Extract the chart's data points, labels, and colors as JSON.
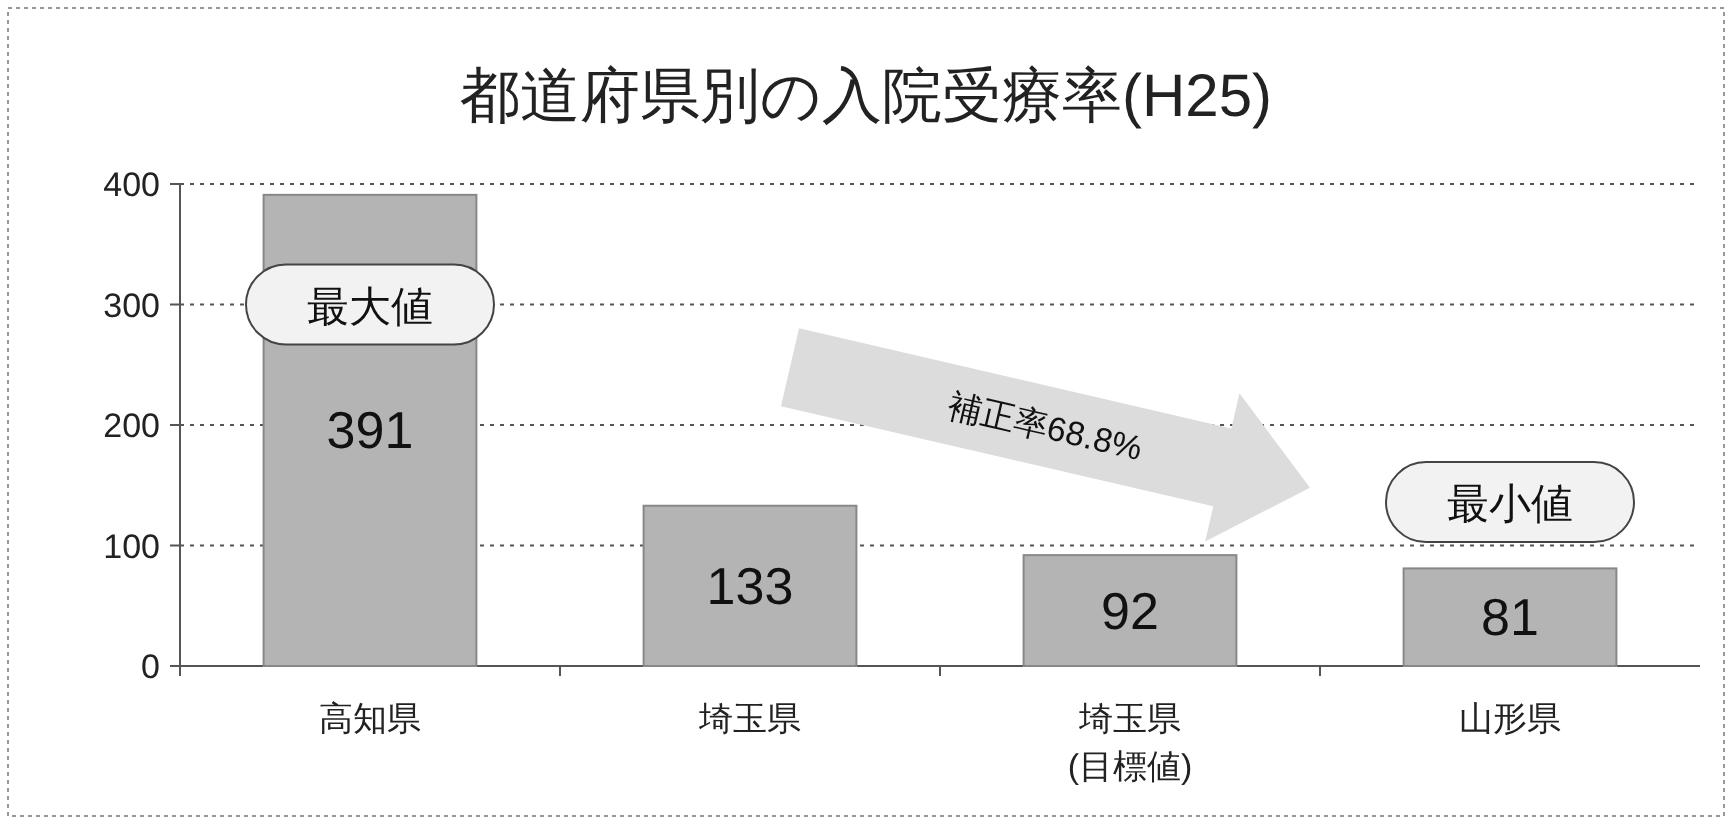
{
  "chart_data": {
    "type": "bar",
    "title": "都道府県別の入院受療率(H25)",
    "categories": [
      "高知県",
      "埼玉県",
      "埼玉県\n(目標値)",
      "山形県"
    ],
    "values": [
      391,
      133,
      92,
      81
    ],
    "color": "#b4b4b4",
    "ylim": [
      0,
      400
    ],
    "yticks": [
      0,
      100,
      200,
      300,
      400
    ],
    "grid": "y",
    "data_labels": true,
    "annotations": [
      "最大値",
      "補正率68.8%",
      "最小値"
    ]
  }
}
